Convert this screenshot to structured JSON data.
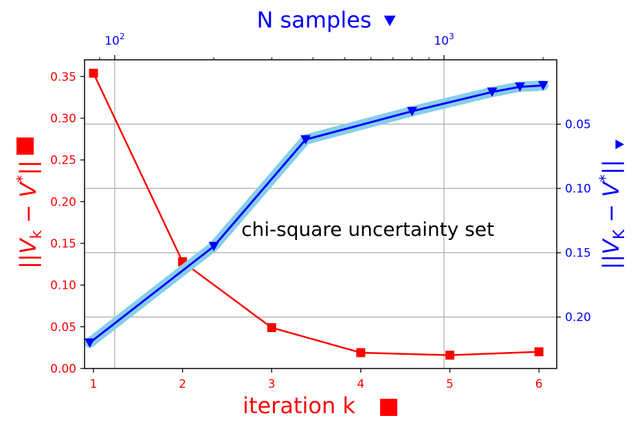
{
  "chart_data": {
    "type": "line",
    "annotation": "chi-square uncertainty set",
    "colors": {
      "red": "#ff0000",
      "blue": "#0000ff",
      "band": "#87ceeb",
      "grid": "#b0b0b0"
    },
    "bottom_axis": {
      "label": "iteration k",
      "label_marker": "square",
      "range": [
        0.9,
        6.2
      ],
      "ticks": [
        "1",
        "2",
        "3",
        "4",
        "5",
        "6"
      ]
    },
    "left_axis": {
      "label": "||V_k − V*||",
      "label_marker": "square",
      "range": [
        0.0,
        0.37
      ],
      "ticks": [
        "0.00",
        "0.05",
        "0.10",
        "0.15",
        "0.20",
        "0.25",
        "0.30",
        "0.35"
      ]
    },
    "top_axis": {
      "label": "N samples",
      "label_marker": "triangle-down",
      "scale": "log",
      "range": [
        81,
        2200
      ],
      "ticks": [
        {
          "base": "10",
          "exp": "2",
          "value": 100
        },
        {
          "base": "10",
          "exp": "3",
          "value": 1000
        }
      ]
    },
    "right_axis": {
      "label": "||V_K − V*||",
      "label_marker": "triangle-right",
      "inverted": true,
      "range": [
        0.0,
        0.24
      ],
      "ticks": [
        "0.05",
        "0.10",
        "0.15",
        "0.20"
      ]
    },
    "series": [
      {
        "axes": "bottom-left",
        "color": "red",
        "marker": "square",
        "x": [
          1,
          2,
          3,
          4,
          5,
          6
        ],
        "y": [
          0.354,
          0.128,
          0.049,
          0.019,
          0.016,
          0.02
        ]
      },
      {
        "axes": "top-right",
        "color": "blue",
        "marker": "triangle-down",
        "band_color": "band",
        "x": [
          84,
          200,
          380,
          800,
          1400,
          1700,
          2000
        ],
        "y": [
          0.22,
          0.145,
          0.062,
          0.04,
          0.025,
          0.021,
          0.02
        ]
      }
    ],
    "grid": true
  }
}
